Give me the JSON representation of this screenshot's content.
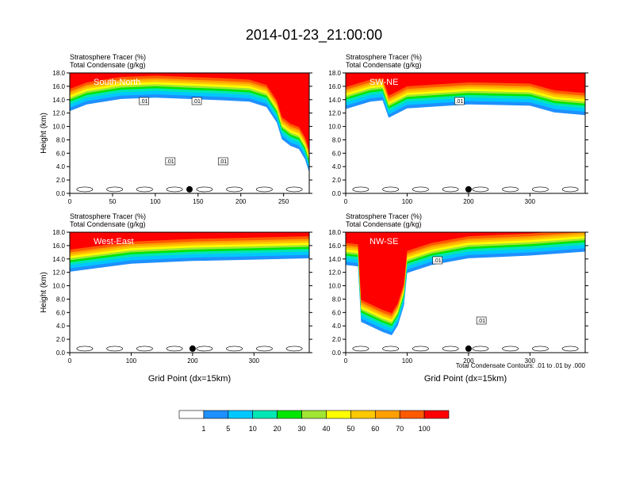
{
  "title": "2014-01-23_21:00:00",
  "contour_note": "Total Condensate Contours: .01 to .01 by .000",
  "colorbar": {
    "labels": [
      "1",
      "5",
      "10",
      "20",
      "30",
      "40",
      "50",
      "60",
      "70",
      "100"
    ],
    "colors": [
      "#ffffff",
      "#1e90ff",
      "#00c8ff",
      "#00e6b4",
      "#00e600",
      "#a0e632",
      "#ffff00",
      "#ffc800",
      "#ffa000",
      "#ff5a00",
      "#ff0000"
    ]
  },
  "chart_data": [
    {
      "type": "heatmap",
      "subtitle1": "Stratosphere Tracer   (%)",
      "subtitle2": "Total Condensate   (g/kg)",
      "panel_label": "South-North",
      "ylabel": "Height (km)",
      "xlabel": "",
      "xlim": [
        0,
        280
      ],
      "ylim": [
        0,
        18
      ],
      "xticks": [
        "0",
        "50",
        "100",
        "150",
        "200",
        "250"
      ],
      "yticks": [
        "0.0",
        "2.0",
        "4.0",
        "6.0",
        "8.0",
        "10.0",
        "12.0",
        "14.0",
        "16.0",
        "18.0"
      ],
      "contour_labels": [
        ".01",
        ".01",
        ".01",
        ".01"
      ],
      "marker_x": 140,
      "tracer_boundary_km": [
        [
          0,
          13.2
        ],
        [
          20,
          14.2
        ],
        [
          60,
          15.0
        ],
        [
          100,
          15.2
        ],
        [
          140,
          15.0
        ],
        [
          180,
          14.8
        ],
        [
          210,
          14.6
        ],
        [
          230,
          13.8
        ],
        [
          242,
          11.5
        ],
        [
          248,
          9.0
        ],
        [
          258,
          8.0
        ],
        [
          268,
          7.5
        ],
        [
          275,
          6.0
        ],
        [
          280,
          4.0
        ]
      ]
    },
    {
      "type": "heatmap",
      "subtitle1": "Stratosphere Tracer   (%)",
      "subtitle2": "Total Condensate   (g/kg)",
      "panel_label": "SW-NE",
      "ylabel": "",
      "xlabel": "",
      "xlim": [
        0,
        390
      ],
      "ylim": [
        0,
        18
      ],
      "xticks": [
        "0",
        "100",
        "200",
        "300"
      ],
      "yticks": [
        "0.0",
        "2.0",
        "4.0",
        "6.0",
        "8.0",
        "10.0",
        "12.0",
        "14.0",
        "16.0",
        "18.0"
      ],
      "contour_labels": [
        ".01"
      ],
      "marker_x": 200,
      "tracer_boundary_km": [
        [
          0,
          13.5
        ],
        [
          40,
          14.6
        ],
        [
          60,
          14.8
        ],
        [
          70,
          12.2
        ],
        [
          100,
          13.6
        ],
        [
          200,
          14.2
        ],
        [
          300,
          14.0
        ],
        [
          340,
          13.0
        ],
        [
          390,
          12.6
        ]
      ]
    },
    {
      "type": "heatmap",
      "subtitle1": "Stratosphere Tracer   (%)",
      "subtitle2": "Total Condensate   (g/kg)",
      "panel_label": "West-East",
      "ylabel": "Height (km)",
      "xlabel": "Grid Point (dx=15km)",
      "xlim": [
        0,
        390
      ],
      "ylim": [
        0,
        18
      ],
      "xticks": [
        "0",
        "100",
        "200",
        "300"
      ],
      "yticks": [
        "0.0",
        "2.0",
        "4.0",
        "6.0",
        "8.0",
        "10.0",
        "12.0",
        "14.0",
        "16.0",
        "18.0"
      ],
      "contour_labels": [],
      "marker_x": 200,
      "tracer_boundary_km": [
        [
          0,
          13.0
        ],
        [
          50,
          13.6
        ],
        [
          100,
          14.2
        ],
        [
          200,
          14.6
        ],
        [
          300,
          14.8
        ],
        [
          390,
          15.0
        ]
      ]
    },
    {
      "type": "heatmap",
      "subtitle1": "Stratosphere Tracer   (%)",
      "subtitle2": "Total Condensate   (g/kg)",
      "panel_label": "NW-SE",
      "ylabel": "",
      "xlabel": "Grid Point (dx=15km)",
      "xlim": [
        0,
        390
      ],
      "ylim": [
        0,
        18
      ],
      "xticks": [
        "0",
        "100",
        "200",
        "300"
      ],
      "yticks": [
        "0.0",
        "2.0",
        "4.0",
        "6.0",
        "8.0",
        "10.0",
        "12.0",
        "14.0",
        "16.0",
        "18.0"
      ],
      "contour_labels": [
        ".01",
        ".01"
      ],
      "marker_x": 200,
      "tracer_boundary_km": [
        [
          0,
          14.0
        ],
        [
          20,
          13.8
        ],
        [
          25,
          5.5
        ],
        [
          60,
          4.0
        ],
        [
          75,
          3.5
        ],
        [
          85,
          5.0
        ],
        [
          95,
          8.0
        ],
        [
          100,
          12.8
        ],
        [
          140,
          14.0
        ],
        [
          200,
          15.0
        ],
        [
          300,
          15.4
        ],
        [
          390,
          16.0
        ]
      ]
    }
  ]
}
